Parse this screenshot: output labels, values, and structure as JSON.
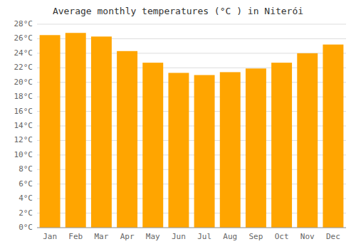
{
  "chart_data": {
    "type": "bar",
    "title": "Average monthly temperatures (°C ) in Niterói",
    "categories": [
      "Jan",
      "Feb",
      "Mar",
      "Apr",
      "May",
      "Jun",
      "Jul",
      "Aug",
      "Sep",
      "Oct",
      "Nov",
      "Dec"
    ],
    "values": [
      26.5,
      26.8,
      26.3,
      24.3,
      22.7,
      21.3,
      21.0,
      21.4,
      21.9,
      22.7,
      24.0,
      25.2
    ],
    "color": "#FFA500",
    "ylim": [
      0,
      28
    ],
    "yticks": [
      {
        "value": 0,
        "label": "0°C"
      },
      {
        "value": 2,
        "label": "2°C"
      },
      {
        "value": 4,
        "label": "4°C"
      },
      {
        "value": 6,
        "label": "6°C"
      },
      {
        "value": 8,
        "label": "8°C"
      },
      {
        "value": 10,
        "label": "10°C"
      },
      {
        "value": 12,
        "label": "12°C"
      },
      {
        "value": 14,
        "label": "14°C"
      },
      {
        "value": 16,
        "label": "16°C"
      },
      {
        "value": 18,
        "label": "18°C"
      },
      {
        "value": 20,
        "label": "20°C"
      },
      {
        "value": 22,
        "label": "22°C"
      },
      {
        "value": 24,
        "label": "24°C"
      },
      {
        "value": 26,
        "label": "26°C"
      },
      {
        "value": 28,
        "label": "28°C"
      }
    ],
    "grid": true
  }
}
